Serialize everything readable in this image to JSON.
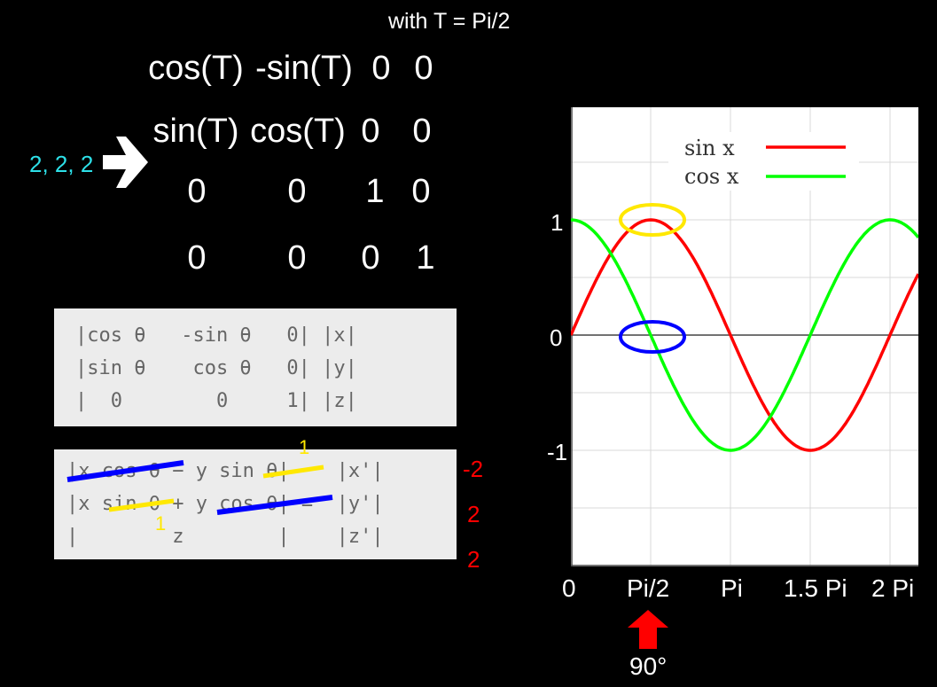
{
  "caption": "with T = Pi/2",
  "matrix": [
    [
      "cos(T)",
      "-sin(T)",
      "0",
      "0"
    ],
    [
      "sin(T)",
      "cos(T)",
      "0",
      "0"
    ],
    [
      "0",
      "0",
      "1",
      "0"
    ],
    [
      "0",
      "0",
      "0",
      "1"
    ]
  ],
  "input_vector": "2, 2, 2",
  "rotation_box_lines": [
    "|cos θ   -sin θ   0| |x|",
    "|sin θ    cos θ   0| |y|",
    "|  0        0     1| |z|"
  ],
  "result_box_lines": [
    "|x cos θ − y sin θ|    |x'|",
    "|x sin θ + y cos θ| =  |y'|",
    "|        z        |    |z'|"
  ],
  "annotations": {
    "sin_top": "1",
    "sin_mid": "1",
    "out_x": "-2",
    "out_y": "2",
    "out_z": "2"
  },
  "legend": {
    "sin": "sin x",
    "cos": "cos x"
  },
  "x_ticks": [
    "0",
    "Pi/2",
    "Pi",
    "1.5 Pi",
    "2 Pi"
  ],
  "y_ticks": [
    "1",
    "0",
    "-1"
  ],
  "angle_label": "90°",
  "colors": {
    "sin": "#ff0000",
    "cos": "#00ff00",
    "highlight_top": "#ffe800",
    "highlight_zero": "#0000ff"
  }
}
